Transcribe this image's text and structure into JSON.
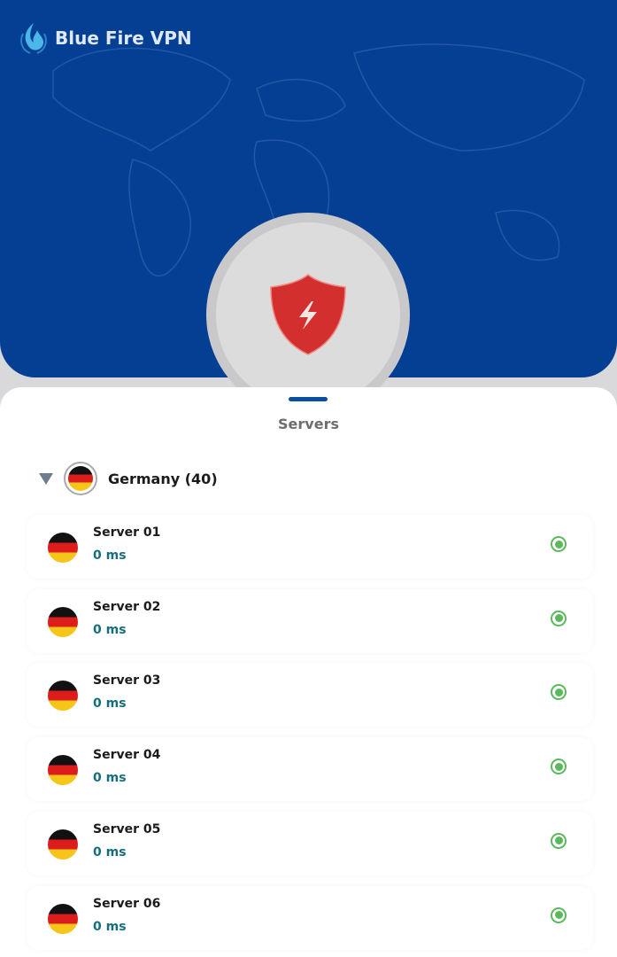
{
  "app": {
    "name": "Blue Fire VPN"
  },
  "colors": {
    "primary": "#053f93",
    "shield": "#d32f2f",
    "ping": "#166e7c",
    "online": "#5cb85c"
  },
  "sheet": {
    "title": "Servers"
  },
  "country": {
    "name": "Germany (40)",
    "flag": "de"
  },
  "servers": [
    {
      "name": "Server 01",
      "ping": "0 ms"
    },
    {
      "name": "Server 02",
      "ping": "0 ms"
    },
    {
      "name": "Server 03",
      "ping": "0 ms"
    },
    {
      "name": "Server 04",
      "ping": "0 ms"
    },
    {
      "name": "Server 05",
      "ping": "0 ms"
    },
    {
      "name": "Server 06",
      "ping": "0 ms"
    }
  ]
}
